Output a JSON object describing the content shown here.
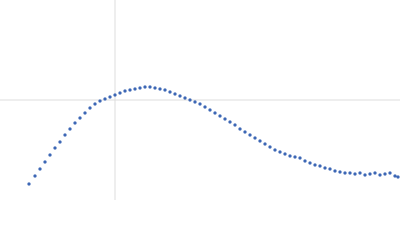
{
  "chart_data": {
    "type": "scatter",
    "x": [
      29,
      35,
      40,
      45,
      50,
      55,
      60,
      65,
      70,
      75,
      80,
      85,
      90,
      95,
      100,
      105,
      110,
      115,
      120,
      125,
      130,
      135,
      140,
      145,
      150,
      155,
      160,
      165,
      170,
      175,
      180,
      185,
      190,
      195,
      200,
      205,
      210,
      215,
      220,
      225,
      230,
      235,
      240,
      245,
      250,
      255,
      260,
      265,
      270,
      275,
      280,
      285,
      290,
      295,
      300,
      305,
      310,
      315,
      320,
      325,
      330,
      335,
      340,
      345,
      350,
      355,
      360,
      365,
      370,
      375,
      380,
      385,
      390,
      395,
      398
    ],
    "series": [
      {
        "color": "#3d67b5",
        "values": [
          16,
          24,
          31,
          38,
          45,
          52,
          58,
          65,
          71,
          77,
          82,
          87,
          92,
          96,
          99,
          101,
          103,
          105,
          107,
          109,
          110,
          111,
          112,
          113,
          113,
          112,
          111,
          110,
          108,
          106,
          104,
          102,
          100,
          98,
          96,
          93,
          90,
          87,
          84,
          81,
          78,
          75,
          71,
          68,
          65,
          62,
          59,
          56,
          53,
          50,
          48,
          46,
          44,
          43,
          42,
          39,
          37,
          35,
          34,
          32,
          31,
          29,
          28,
          27,
          27,
          26,
          27,
          25,
          26,
          27,
          25,
          26,
          27,
          24,
          23
        ]
      }
    ],
    "xlim": [
      0,
      400
    ],
    "ylim": [
      0,
      200
    ],
    "xticks": [
      115
    ],
    "yticks": [
      100
    ],
    "grid": true
  }
}
